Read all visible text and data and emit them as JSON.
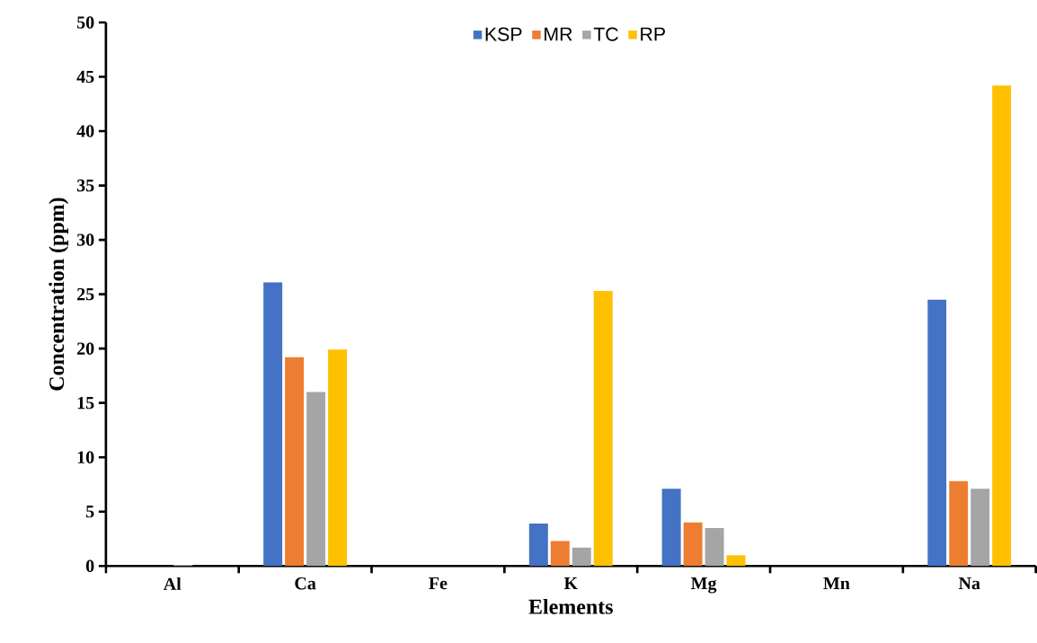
{
  "chart_data": {
    "type": "bar",
    "xlabel": "Elements",
    "ylabel": "Concentration (ppm)",
    "categories": [
      "Al",
      "Ca",
      "Fe",
      "K",
      "Mg",
      "Mn",
      "Na"
    ],
    "series": [
      {
        "name": "KSP",
        "color": "#4472c4",
        "values": [
          0,
          26.1,
          0,
          3.9,
          7.1,
          0,
          24.5
        ]
      },
      {
        "name": "MR",
        "color": "#ed7d31",
        "values": [
          0,
          19.2,
          0,
          2.3,
          4.0,
          0,
          7.8
        ]
      },
      {
        "name": "TC",
        "color": "#a5a5a5",
        "values": [
          0.1,
          16.0,
          0,
          1.7,
          3.5,
          0,
          7.1
        ]
      },
      {
        "name": "RP",
        "color": "#ffc000",
        "values": [
          0,
          19.9,
          0,
          25.3,
          1.0,
          0,
          44.2
        ]
      }
    ],
    "ylim": [
      0,
      50
    ],
    "yticks": [
      0,
      5,
      10,
      15,
      20,
      25,
      30,
      35,
      40,
      45,
      50
    ],
    "grid": false,
    "legend": "top"
  }
}
